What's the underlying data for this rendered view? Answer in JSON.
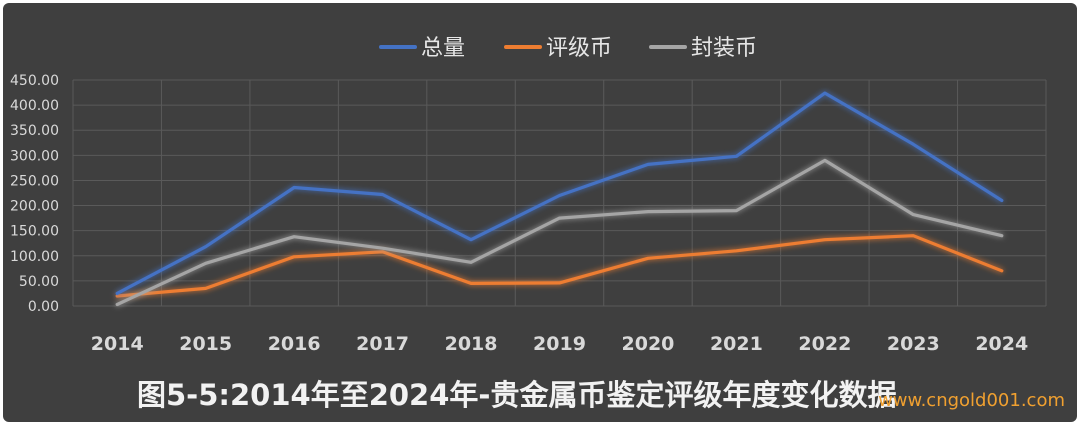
{
  "caption": "图5-5:2014年至2024年-贵金属币鉴定评级年度变化数据",
  "watermark": "www.cngold001.com",
  "colors": {
    "background": "#3f3f3f",
    "grid": "#5a5a5a",
    "tick": "#d9d9d9"
  },
  "chart_data": {
    "type": "line",
    "title": "",
    "xlabel": "",
    "ylabel": "",
    "x": [
      "2014",
      "2015",
      "2016",
      "2017",
      "2018",
      "2019",
      "2020",
      "2021",
      "2022",
      "2023",
      "2024"
    ],
    "ylim": [
      0,
      450
    ],
    "yticks": [
      "0.00",
      "50.00",
      "100.00",
      "150.00",
      "200.00",
      "250.00",
      "300.00",
      "350.00",
      "400.00",
      "450.00"
    ],
    "grid": true,
    "legend_position": "top-center",
    "series": [
      {
        "name": "总量",
        "color": "#4472c4",
        "values": [
          25,
          118,
          236,
          222,
          132,
          220,
          282,
          298,
          424,
          322,
          210
        ]
      },
      {
        "name": "评级币",
        "color": "#ed7d31",
        "values": [
          20,
          35,
          98,
          108,
          45,
          46,
          95,
          110,
          132,
          140,
          70
        ]
      },
      {
        "name": "封装币",
        "color": "#a5a5a5",
        "values": [
          3,
          85,
          138,
          115,
          87,
          175,
          188,
          190,
          290,
          182,
          140
        ]
      }
    ]
  }
}
